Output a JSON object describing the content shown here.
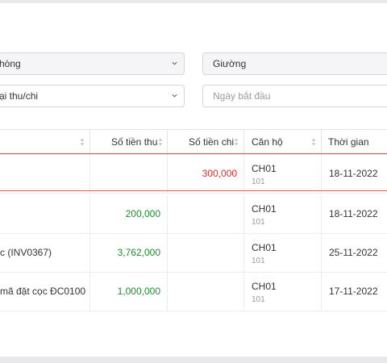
{
  "filters": {
    "room_select": "hòng",
    "bed_select": "Giường",
    "type_select": "ại thu/chi",
    "start_date_placeholder": "Ngày bắt đầu"
  },
  "table": {
    "headers": {
      "income": "Số tiền thu",
      "expense": "Số tiền chi",
      "apartment": "Căn hộ",
      "time": "Thời gian"
    },
    "rows": [
      {
        "desc": "",
        "income": "",
        "expense": "300,000",
        "apartment": "CH01",
        "room": "101",
        "time": "18-11-2022"
      },
      {
        "desc": "",
        "income": "200,000",
        "expense": "",
        "apartment": "CH01",
        "room": "101",
        "time": "18-11-2022"
      },
      {
        "desc": "c (INV0367)",
        "income": "3,762,000",
        "expense": "",
        "apartment": "CH01",
        "room": "101",
        "time": "25-11-2022"
      },
      {
        "desc": "mã đặt cọc ĐC0100",
        "income": "1,000,000",
        "expense": "",
        "apartment": "CH01",
        "room": "101",
        "time": "17-11-2022"
      }
    ]
  },
  "colors": {
    "income": "#1a8f2f",
    "expense": "#e12b2b",
    "highlight_border": "#e35a4c"
  }
}
